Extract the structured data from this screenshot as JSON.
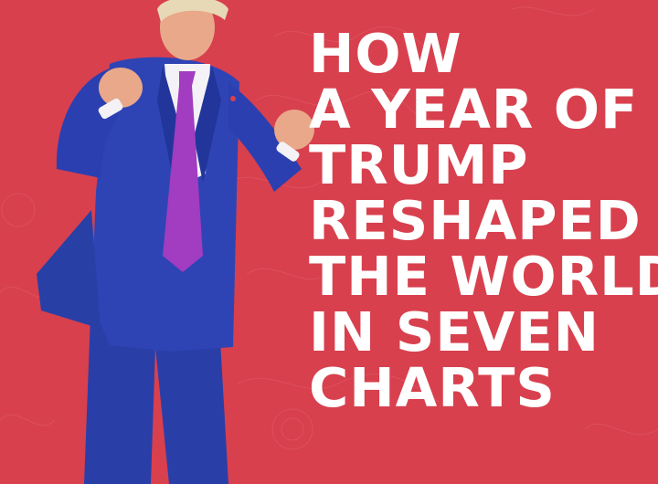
{
  "headline": {
    "lines": [
      "HOW",
      "A YEAR OF",
      "TRUMP",
      "RESHAPED",
      "THE WORLD",
      "IN SEVEN",
      "CHARTS"
    ]
  },
  "figure": {
    "subject": "man-in-blue-suit-dancing",
    "suit_color": "#2b3fb0",
    "tie_color": "#a23cc0",
    "shirt_color": "#f4f2f6",
    "skin_color": "#e9a88a",
    "hair_color": "#e7d9b6"
  },
  "colors": {
    "background": "#d8404e",
    "headline_text": "#ffffff"
  }
}
